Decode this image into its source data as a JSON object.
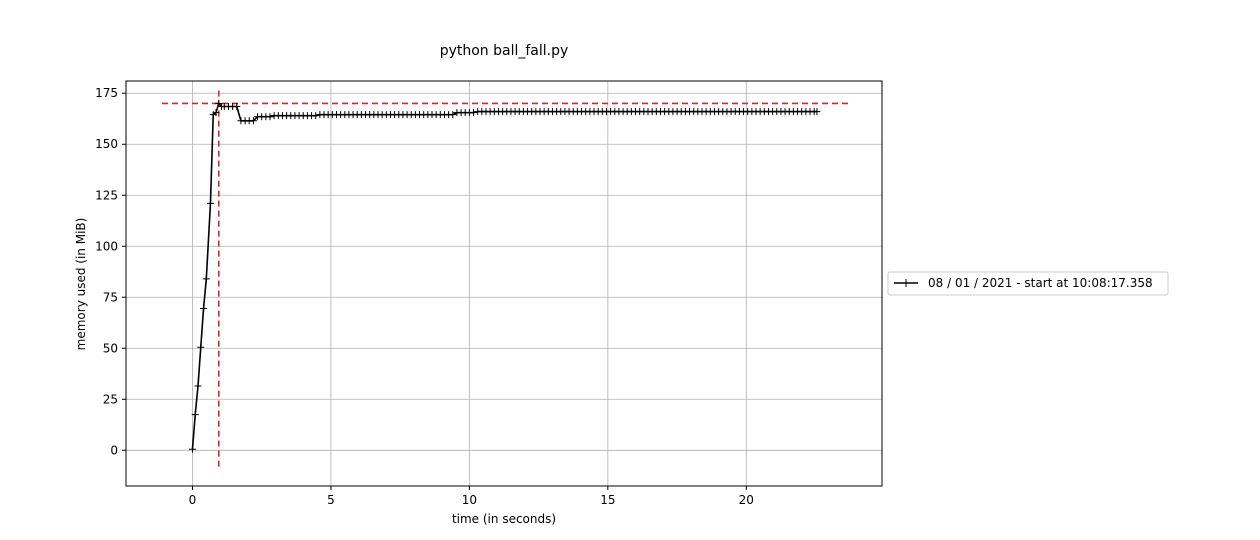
{
  "chart_data": {
    "type": "line",
    "title": "python ball_fall.py",
    "xlabel": "time (in seconds)",
    "ylabel": "memory used (in MiB)",
    "xlim": [
      -2.4,
      24.9
    ],
    "ylim": [
      -17.5,
      181
    ],
    "xticks": [
      0,
      5,
      10,
      15,
      20
    ],
    "yticks": [
      0,
      25,
      50,
      75,
      100,
      125,
      150,
      175
    ],
    "grid": true,
    "legend": {
      "placement": "right-outside",
      "entries": [
        "08 / 01 / 2021 - start at 10:08:17.358"
      ]
    },
    "series": [
      {
        "name": "08 / 01 / 2021 - start at 10:08:17.358",
        "color": "#000000",
        "marker": "+",
        "x": [
          0.0,
          0.1,
          0.2,
          0.3,
          0.4,
          0.5,
          0.65,
          0.75,
          0.85,
          0.95,
          1.05,
          1.15,
          1.3,
          1.45,
          1.6,
          1.75,
          1.9,
          2.05,
          2.2,
          2.35,
          2.5,
          2.65,
          2.8,
          2.95,
          3.1,
          3.25,
          3.4,
          3.55,
          3.7,
          3.85,
          4.0,
          4.15,
          4.3,
          4.45,
          4.6,
          4.75,
          4.9,
          5.05,
          5.2,
          5.35,
          5.5,
          5.65,
          5.8,
          5.95,
          6.1,
          6.25,
          6.4,
          6.55,
          6.7,
          6.85,
          7.0,
          7.15,
          7.3,
          7.45,
          7.6,
          7.75,
          7.9,
          8.05,
          8.2,
          8.35,
          8.5,
          8.65,
          8.8,
          8.95,
          9.1,
          9.25,
          9.4,
          9.55,
          9.7,
          9.85,
          10.0,
          10.15,
          10.3,
          10.45,
          10.6,
          10.75,
          10.9,
          11.05,
          11.2,
          11.35,
          11.5,
          11.65,
          11.8,
          11.95,
          12.1,
          12.25,
          12.4,
          12.55,
          12.7,
          12.85,
          13.0,
          13.15,
          13.3,
          13.45,
          13.6,
          13.75,
          13.9,
          14.05,
          14.2,
          14.35,
          14.5,
          14.65,
          14.8,
          14.95,
          15.1,
          15.25,
          15.4,
          15.55,
          15.7,
          15.85,
          16.0,
          16.15,
          16.3,
          16.45,
          16.6,
          16.75,
          16.9,
          17.05,
          17.2,
          17.35,
          17.5,
          17.65,
          17.8,
          17.95,
          18.1,
          18.25,
          18.4,
          18.55,
          18.7,
          18.85,
          19.0,
          19.15,
          19.3,
          19.45,
          19.6,
          19.75,
          19.9,
          20.05,
          20.2,
          20.35,
          20.5,
          20.65,
          20.8,
          20.95,
          21.1,
          21.25,
          21.4,
          21.55,
          21.7,
          21.85,
          22.0,
          22.15,
          22.3,
          22.45,
          22.55
        ],
        "y": [
          0.5,
          17.5,
          31.5,
          50.5,
          69.5,
          84.0,
          121.0,
          164.5,
          165.5,
          170.0,
          168.5,
          168.5,
          168.5,
          168.5,
          168.5,
          161.5,
          161.5,
          161.5,
          161.5,
          163.5,
          163.5,
          163.5,
          163.5,
          164.0,
          164.0,
          164.0,
          164.0,
          164.0,
          164.0,
          164.0,
          164.0,
          164.0,
          164.0,
          164.0,
          164.5,
          164.5,
          164.5,
          164.5,
          164.5,
          164.5,
          164.5,
          164.5,
          164.5,
          164.5,
          164.5,
          164.5,
          164.5,
          164.5,
          164.5,
          164.5,
          164.5,
          164.5,
          164.5,
          164.5,
          164.5,
          164.5,
          164.5,
          164.5,
          164.5,
          164.5,
          164.5,
          164.5,
          164.5,
          164.5,
          164.5,
          164.5,
          164.5,
          165.5,
          165.5,
          165.5,
          165.5,
          165.5,
          166.0,
          166.0,
          166.0,
          166.0,
          166.0,
          166.0,
          166.0,
          166.0,
          166.0,
          166.0,
          166.0,
          166.0,
          166.0,
          166.0,
          166.0,
          166.0,
          166.0,
          166.0,
          166.0,
          166.0,
          166.0,
          166.0,
          166.0,
          166.0,
          166.0,
          166.0,
          166.0,
          166.0,
          166.0,
          166.0,
          166.0,
          166.0,
          166.0,
          166.0,
          166.0,
          166.0,
          166.0,
          166.0,
          166.0,
          166.0,
          166.0,
          166.0,
          166.0,
          166.0,
          166.0,
          166.0,
          166.0,
          166.0,
          166.0,
          166.0,
          166.0,
          166.0,
          166.0,
          166.0,
          166.0,
          166.0,
          166.0,
          166.0,
          166.0,
          166.0,
          166.0,
          166.0,
          166.0,
          166.0,
          166.0,
          166.0,
          166.0,
          166.0,
          166.0,
          166.0,
          166.0,
          166.0,
          166.0,
          166.0,
          166.0,
          166.0,
          166.0,
          166.0,
          166.0,
          166.0,
          166.0,
          166.0,
          166.0
        ]
      }
    ],
    "reference_lines": {
      "color": "#d62728",
      "style": "dashed",
      "horizontal": {
        "y": 170.0,
        "x_from": -1.1,
        "x_to": 23.7
      },
      "vertical": {
        "x": 0.95,
        "y_from": -8.0,
        "y_to": 178.0
      }
    }
  }
}
